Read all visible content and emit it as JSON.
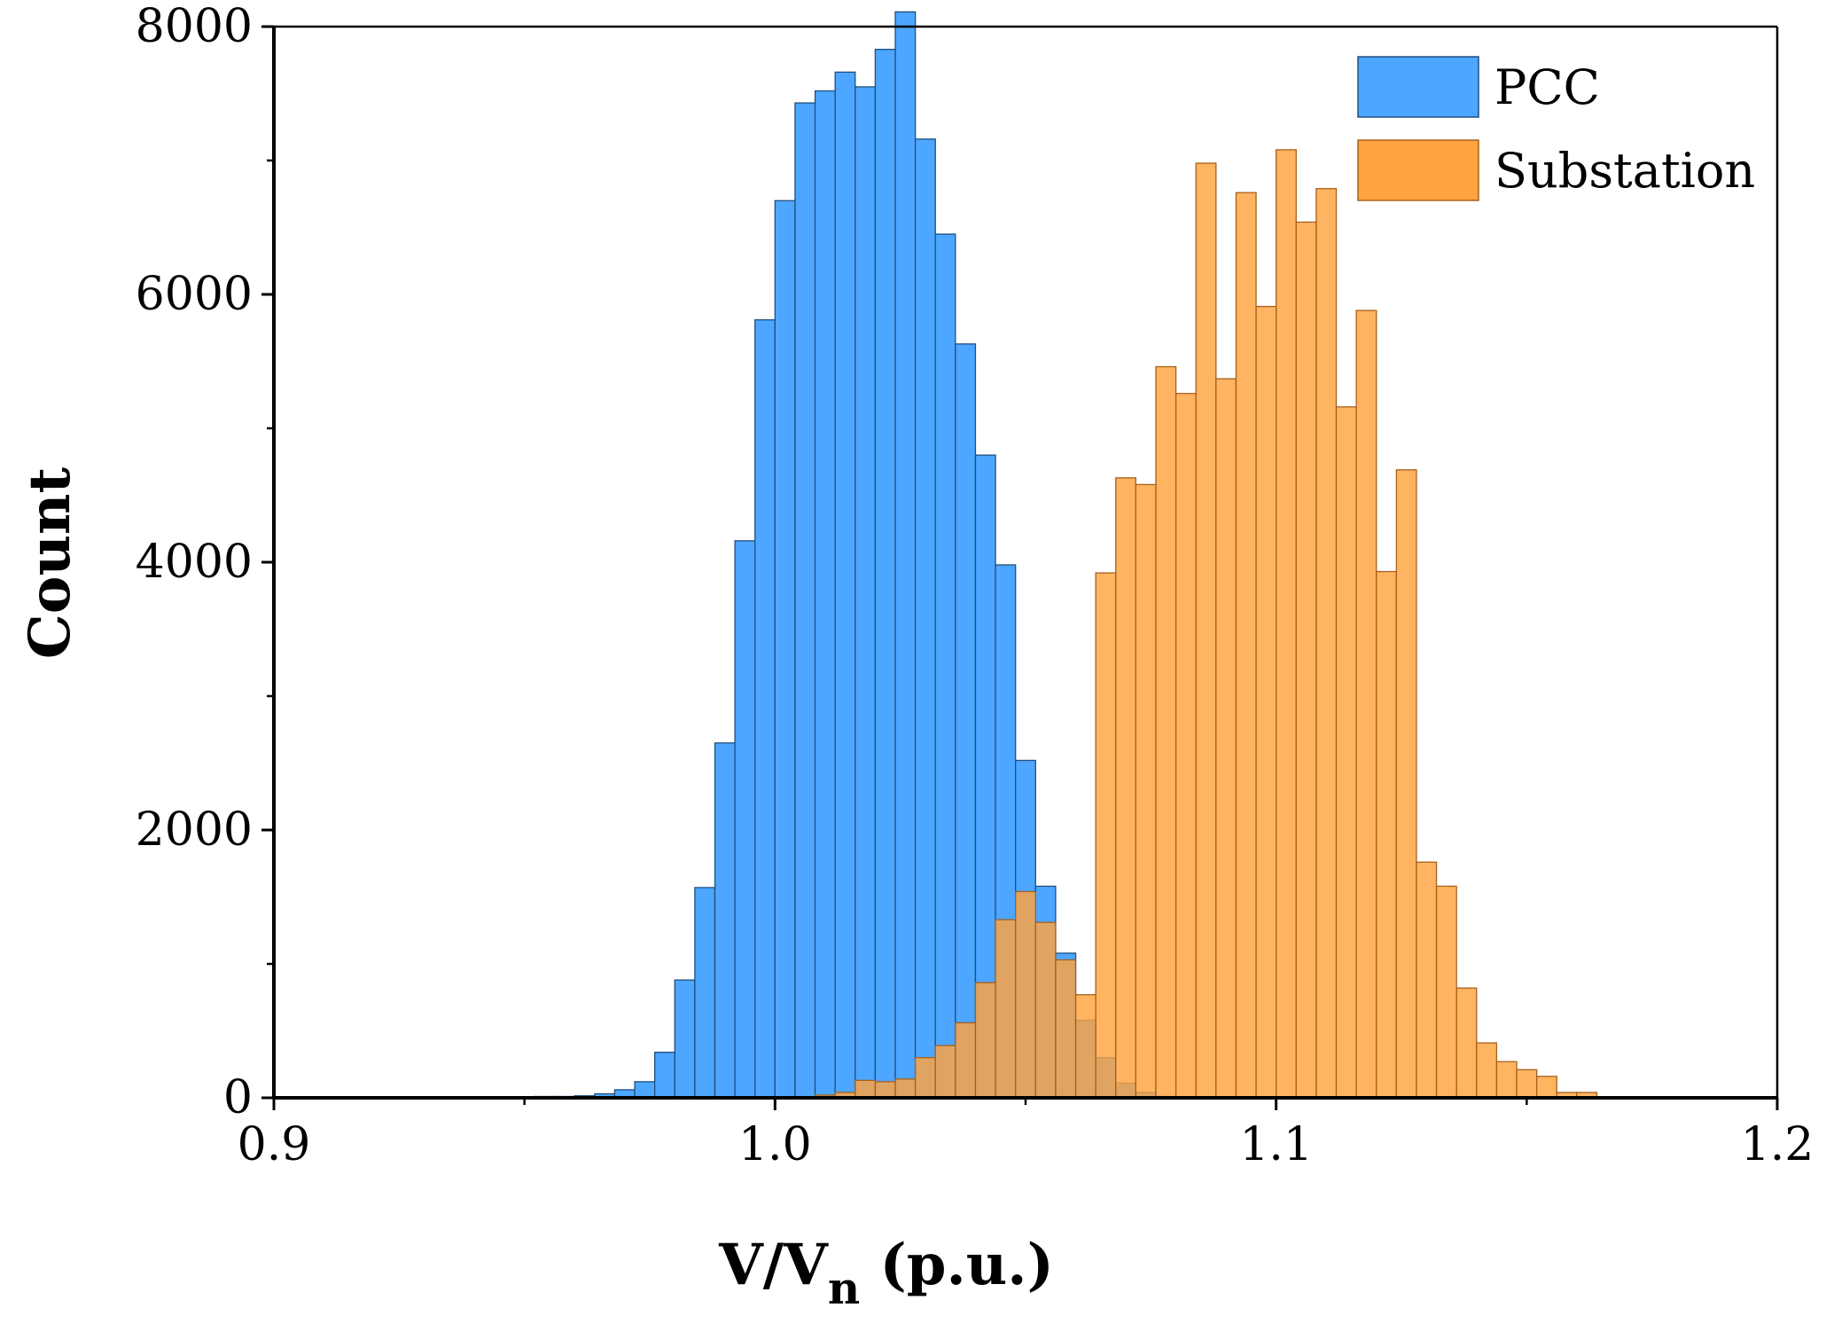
{
  "chart_data": {
    "type": "bar",
    "title": "",
    "xlabel": "V/V",
    "xlabel_subscript": "n",
    "xlabel_suffix": " (p.u.)",
    "ylabel": "Count",
    "xlim": [
      0.9,
      1.2
    ],
    "ylim": [
      0,
      8000
    ],
    "xticks": [
      0.9,
      1.0,
      1.1,
      1.2
    ],
    "xtick_labels": [
      "0.9",
      "1.0",
      "1.1",
      "1.2"
    ],
    "yticks": [
      0,
      2000,
      4000,
      6000,
      8000
    ],
    "ytick_labels": [
      "0",
      "2000",
      "4000",
      "6000",
      "8000"
    ],
    "bin_width": 0.004,
    "legend_position": "top-right",
    "series": [
      {
        "name": "PCC",
        "color": "#4da6ff",
        "edge_color": "#1f4f80",
        "bin_starts": [
          0.952,
          0.956,
          0.96,
          0.964,
          0.968,
          0.972,
          0.976,
          0.98,
          0.984,
          0.988,
          0.992,
          0.996,
          1.0,
          1.004,
          1.008,
          1.012,
          1.016,
          1.02,
          1.024,
          1.028,
          1.032,
          1.036,
          1.04,
          1.044,
          1.048,
          1.052,
          1.056,
          1.06,
          1.064,
          1.068,
          1.072,
          1.076
        ],
        "values": [
          10,
          10,
          15,
          30,
          60,
          120,
          340,
          880,
          1570,
          2650,
          4160,
          5810,
          6700,
          7430,
          7520,
          7660,
          7550,
          7830,
          8110,
          7160,
          6450,
          5630,
          4800,
          3980,
          2520,
          1580,
          1080,
          580,
          300,
          110,
          40,
          10
        ]
      },
      {
        "name": "Substation",
        "color": "#ffa33f",
        "edge_color": "#a8601a",
        "bin_starts": [
          1.008,
          1.012,
          1.016,
          1.02,
          1.024,
          1.028,
          1.032,
          1.036,
          1.04,
          1.044,
          1.048,
          1.052,
          1.056,
          1.06,
          1.064,
          1.068,
          1.072,
          1.076,
          1.08,
          1.084,
          1.088,
          1.092,
          1.096,
          1.1,
          1.104,
          1.108,
          1.112,
          1.116,
          1.12,
          1.124,
          1.128,
          1.132,
          1.136,
          1.14,
          1.144,
          1.148,
          1.152,
          1.156,
          1.16
        ],
        "values": [
          20,
          40,
          130,
          120,
          140,
          300,
          390,
          560,
          860,
          1330,
          1540,
          1310,
          1030,
          770,
          3920,
          4630,
          4580,
          5460,
          5260,
          6980,
          5370,
          6760,
          5910,
          7080,
          6540,
          6790,
          5160,
          5880,
          3930,
          4690,
          1760,
          1580,
          820,
          410,
          270,
          210,
          160,
          40,
          40
        ]
      }
    ]
  }
}
